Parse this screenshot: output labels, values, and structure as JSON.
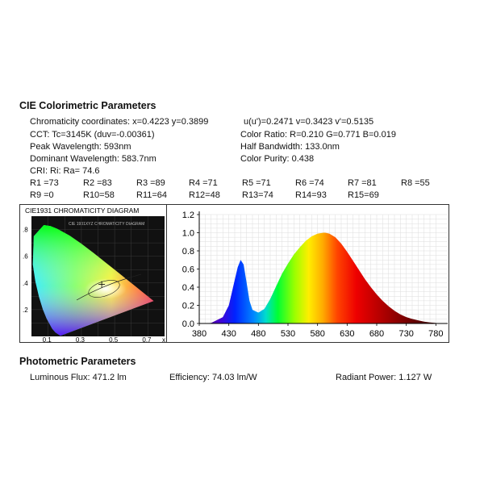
{
  "colorimetric": {
    "heading": "CIE Colorimetric Parameters",
    "chromaticity": "Chromaticity coordinates: x=0.4223 y=0.3899",
    "uv": "u(u')=0.2471 v=0.3423 v'=0.5135",
    "cct": "CCT: Tc=3145K (duv=-0.00361)",
    "color_ratio": "Color Ratio: R=0.210 G=0.771 B=0.019",
    "peak": "Peak Wavelength: 593nm",
    "half_bw": "Half Bandwidth: 133.0nm",
    "dominant": "Dominant Wavelength: 583.7nm",
    "purity": "Color Purity: 0.438",
    "cri": "CRI: Ri: Ra= 74.6",
    "r_values_row1": [
      "R1 =73",
      "R2 =83",
      "R3 =89",
      "R4 =71",
      "R5 =71",
      "R6 =74",
      "R7 =81",
      "R8 =55"
    ],
    "r_values_row2": [
      "R9 =0",
      "R10=58",
      "R11=64",
      "R12=48",
      "R13=74",
      "R14=93",
      "R15=69"
    ]
  },
  "cie_diagram": {
    "title": "CIE1931 CHROMATICITY DIAGRAM",
    "inner_title": "CIE 1931XYZ CHROMATICITY DIAGRAM",
    "y_ticks": [
      ".8",
      ".6",
      ".4",
      ".2"
    ],
    "x_ticks": [
      "0.1",
      "0.3",
      "0.5",
      "0.7"
    ],
    "x_axis_letter": "x",
    "y_axis_letter": "y",
    "point": {
      "x": 0.4223,
      "y": 0.3899
    }
  },
  "chart_data": {
    "type": "area",
    "x": [
      380,
      400,
      420,
      430,
      440,
      445,
      450,
      455,
      460,
      465,
      470,
      480,
      490,
      500,
      510,
      520,
      530,
      540,
      550,
      560,
      570,
      580,
      590,
      593,
      600,
      610,
      620,
      630,
      640,
      650,
      660,
      670,
      680,
      690,
      700,
      710,
      720,
      730,
      740,
      750,
      760,
      770,
      780
    ],
    "y": [
      0.0,
      0.005,
      0.07,
      0.2,
      0.48,
      0.62,
      0.7,
      0.65,
      0.45,
      0.25,
      0.15,
      0.12,
      0.16,
      0.27,
      0.41,
      0.55,
      0.66,
      0.76,
      0.84,
      0.91,
      0.96,
      0.99,
      1.0,
      1.0,
      0.99,
      0.95,
      0.88,
      0.79,
      0.69,
      0.59,
      0.49,
      0.4,
      0.32,
      0.25,
      0.19,
      0.14,
      0.1,
      0.07,
      0.05,
      0.035,
      0.02,
      0.012,
      0.005
    ],
    "xlim": [
      380,
      800
    ],
    "ylim": [
      0,
      1.2
    ],
    "x_ticks": [
      "380",
      "430",
      "480",
      "530",
      "580",
      "630",
      "680",
      "730",
      "780"
    ],
    "y_ticks": [
      "0.0",
      "0.2",
      "0.4",
      "0.6",
      "0.8",
      "1.0",
      "1.2"
    ],
    "grid": true,
    "title": "",
    "xlabel": "",
    "ylabel": ""
  },
  "photometric": {
    "heading": "Photometric Parameters",
    "flux": "Luminous Flux: 471.2 lm",
    "efficiency": "Efficiency: 74.03 lm/W",
    "radiant": "Radiant Power: 1.127 W"
  }
}
